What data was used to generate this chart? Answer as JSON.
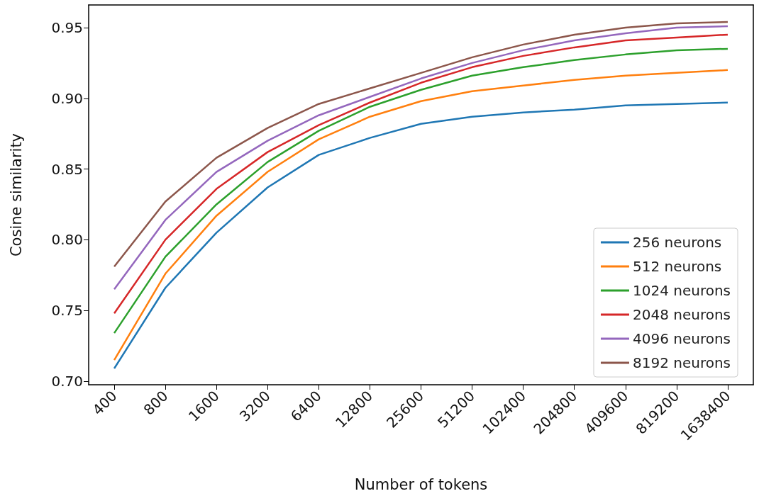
{
  "chart_data": {
    "type": "line",
    "xlabel": "Number of tokens",
    "ylabel": "Cosine similarity",
    "categories": [
      "400",
      "800",
      "1600",
      "3200",
      "6400",
      "12800",
      "25600",
      "51200",
      "102400",
      "204800",
      "409600",
      "819200",
      "1638400"
    ],
    "series": [
      {
        "name": "256 neurons",
        "color": "#1f77b4",
        "values": [
          0.709,
          0.766,
          0.805,
          0.837,
          0.86,
          0.872,
          0.882,
          0.887,
          0.89,
          0.892,
          0.895,
          0.896,
          0.897
        ]
      },
      {
        "name": "512 neurons",
        "color": "#ff7f0e",
        "values": [
          0.715,
          0.776,
          0.817,
          0.848,
          0.871,
          0.887,
          0.898,
          0.905,
          0.909,
          0.913,
          0.916,
          0.918,
          0.92
        ]
      },
      {
        "name": "1024 neurons",
        "color": "#2ca02c",
        "values": [
          0.734,
          0.788,
          0.825,
          0.855,
          0.877,
          0.894,
          0.906,
          0.916,
          0.922,
          0.927,
          0.931,
          0.934,
          0.935
        ]
      },
      {
        "name": "2048 neurons",
        "color": "#d62728",
        "values": [
          0.748,
          0.8,
          0.836,
          0.862,
          0.881,
          0.897,
          0.911,
          0.922,
          0.93,
          0.936,
          0.941,
          0.943,
          0.945
        ]
      },
      {
        "name": "4096 neurons",
        "color": "#9467bd",
        "values": [
          0.765,
          0.814,
          0.848,
          0.87,
          0.888,
          0.901,
          0.914,
          0.925,
          0.934,
          0.941,
          0.946,
          0.95,
          0.951
        ]
      },
      {
        "name": "8192 neurons",
        "color": "#8c564b",
        "values": [
          0.781,
          0.827,
          0.858,
          0.879,
          0.896,
          0.907,
          0.918,
          0.929,
          0.938,
          0.945,
          0.95,
          0.953,
          0.954
        ]
      }
    ],
    "ylim": [
      0.6975,
      0.966
    ],
    "yticks": [
      {
        "value": 0.7,
        "label": "0.70"
      },
      0.75,
      {
        "value": 0.8,
        "label": "0.80"
      },
      0.85,
      {
        "value": 0.9,
        "label": "0.90"
      },
      0.95
    ],
    "grid": false,
    "legend": "bottom right",
    "marker": "none",
    "line_style": "solid"
  }
}
